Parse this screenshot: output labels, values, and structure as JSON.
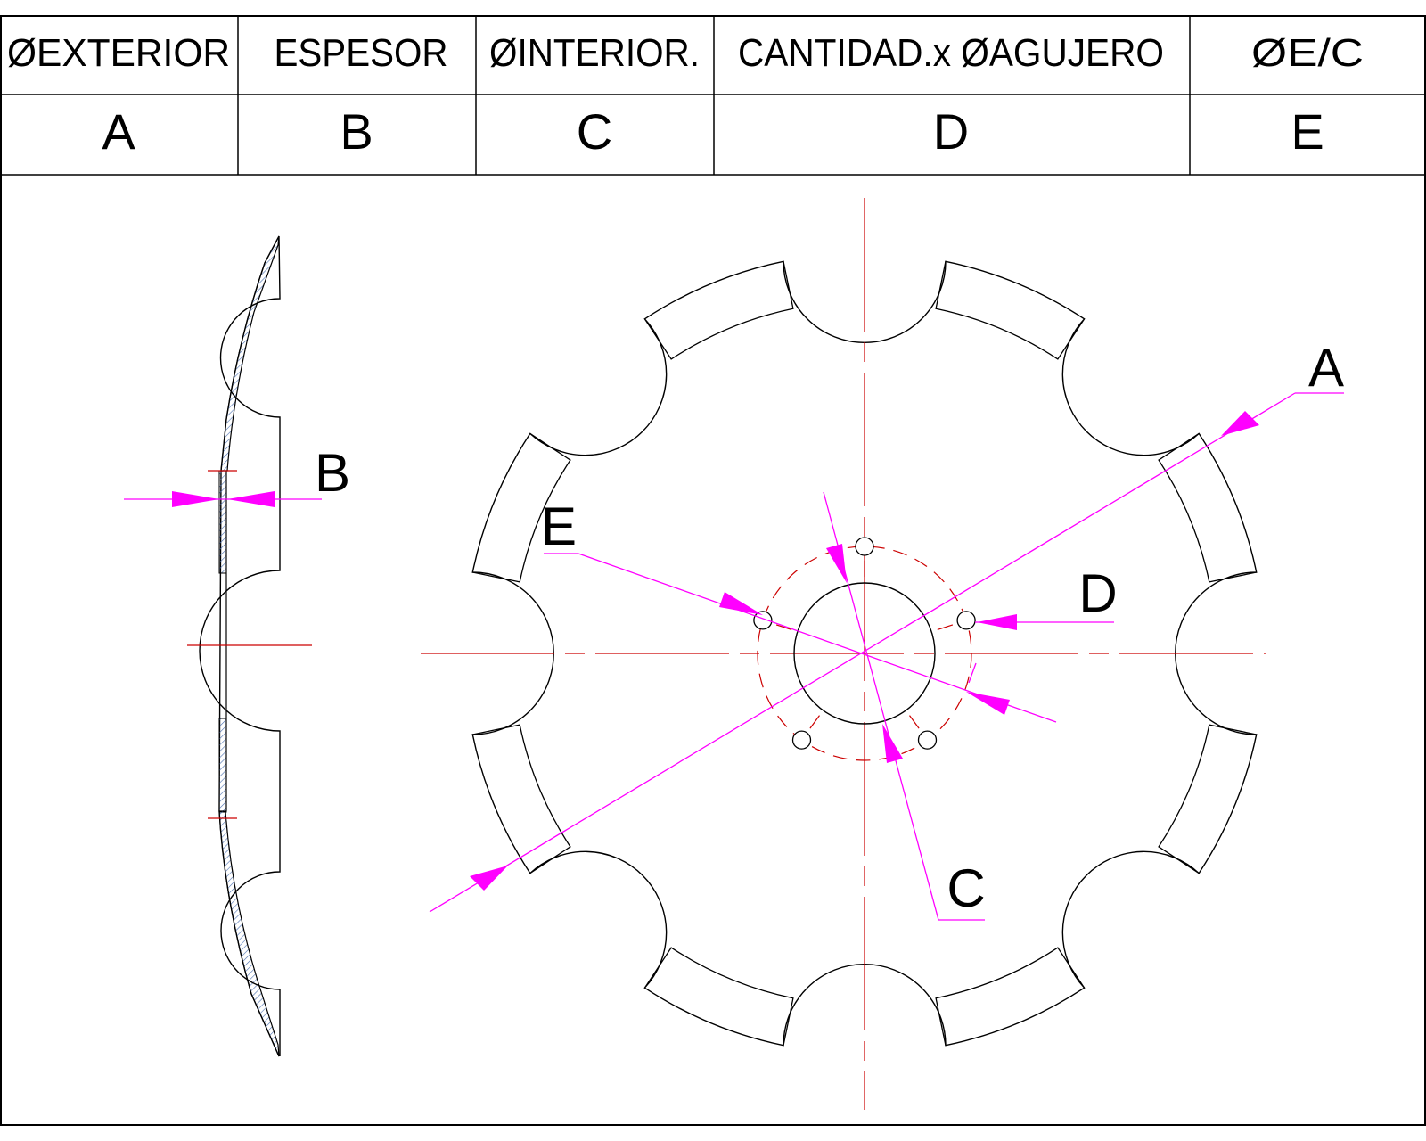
{
  "table": {
    "headers": [
      "ØEXTERIOR",
      "ESPESOR",
      "ØINTERIOR.",
      "CANTIDAD.x ØAGUJERO",
      "ØE/C"
    ],
    "codes": [
      "A",
      "B",
      "C",
      "D",
      "E"
    ]
  },
  "callouts": {
    "a": "A",
    "b": "B",
    "c": "C",
    "d": "D",
    "e": "E"
  },
  "colors": {
    "outline": "#000000",
    "centerline": "#cc0000",
    "dimension": "#ff00ff",
    "hatch": "#4a6fb0"
  },
  "disc": {
    "notch_count": 8,
    "bolt_hole_count": 5
  }
}
